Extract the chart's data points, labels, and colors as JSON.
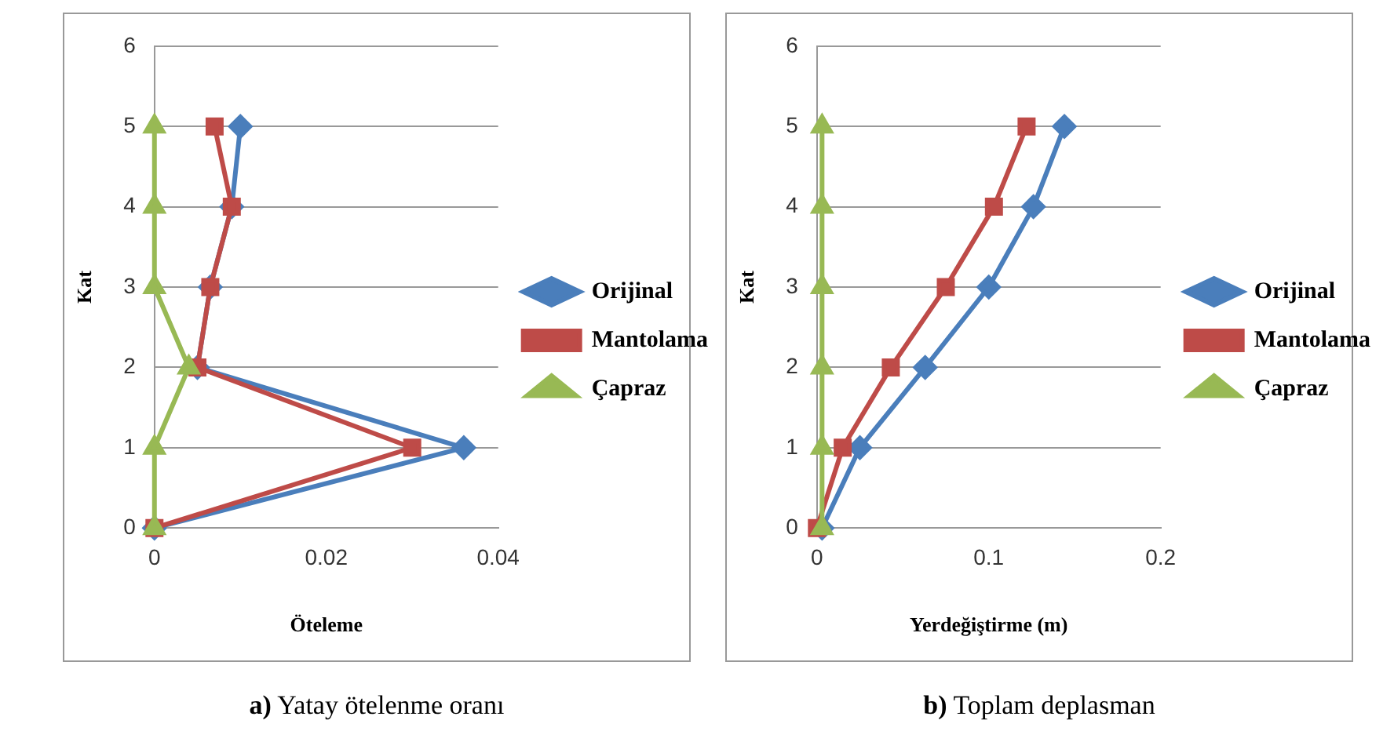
{
  "chart_data": [
    {
      "type": "line",
      "title": "a) Yatay ötelenme oranı",
      "xlabel": "Öteleme",
      "ylabel": "Kat",
      "xlim": [
        0,
        0.04
      ],
      "xticks": [
        0,
        0.02,
        0.04
      ],
      "ylim": [
        0,
        6
      ],
      "yticks": [
        0,
        1,
        2,
        3,
        4,
        5,
        6
      ],
      "grid": "y",
      "legend": "right",
      "series": [
        {
          "name": "Orijinal",
          "color": "#4a7ebb",
          "marker": "diamond",
          "x": [
            0,
            0.036,
            0.005,
            0.0065,
            0.009,
            0.01
          ],
          "values": [
            0,
            1,
            2,
            3,
            4,
            5
          ]
        },
        {
          "name": "Mantolama",
          "color": "#be4b48",
          "marker": "square",
          "x": [
            0,
            0.03,
            0.005,
            0.0065,
            0.009,
            0.007
          ],
          "values": [
            0,
            1,
            2,
            3,
            4,
            5
          ]
        },
        {
          "name": "Çapraz",
          "color": "#98b954",
          "marker": "triangle",
          "x": [
            0,
            0,
            0.004,
            0,
            0,
            0
          ],
          "values": [
            0,
            1,
            2,
            3,
            4,
            5
          ]
        }
      ]
    },
    {
      "type": "line",
      "title": "b) Toplam deplasman",
      "xlabel": "Yerdeğiştirme (m)",
      "ylabel": "Kat",
      "xlim": [
        0,
        0.2
      ],
      "xticks": [
        0,
        0.1,
        0.2
      ],
      "ylim": [
        0,
        6
      ],
      "yticks": [
        0,
        1,
        2,
        3,
        4,
        5,
        6
      ],
      "grid": "y",
      "legend": "right",
      "series": [
        {
          "name": "Orijinal",
          "color": "#4a7ebb",
          "marker": "diamond",
          "x": [
            0.003,
            0.025,
            0.063,
            0.1,
            0.126,
            0.144
          ],
          "values": [
            0,
            1,
            2,
            3,
            4,
            5
          ]
        },
        {
          "name": "Mantolama",
          "color": "#be4b48",
          "marker": "square",
          "x": [
            0,
            0.015,
            0.043,
            0.075,
            0.103,
            0.122
          ],
          "values": [
            0,
            1,
            2,
            3,
            4,
            5
          ]
        },
        {
          "name": "Çapraz",
          "color": "#98b954",
          "marker": "triangle",
          "x": [
            0.003,
            0.003,
            0.003,
            0.003,
            0.003,
            0.003
          ],
          "values": [
            0,
            1,
            2,
            3,
            4,
            5
          ]
        }
      ]
    }
  ]
}
